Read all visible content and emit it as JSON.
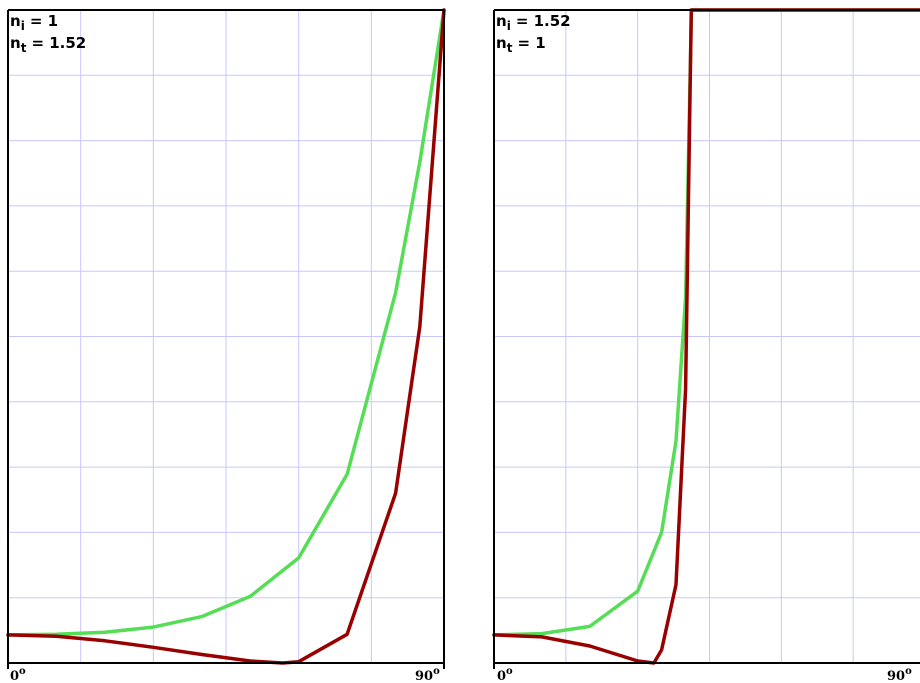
{
  "colors": {
    "grid": "#c8c8ff",
    "frame": "#000000",
    "perpendicular": "#990000",
    "parallel": "#55dd55"
  },
  "chart_data": [
    {
      "type": "line",
      "xlim": [
        0,
        90
      ],
      "ylim": [
        0,
        1
      ],
      "grid": true,
      "labels": {
        "ni_sym": "n",
        "ni_sub": "i",
        "ni_val": "= 1",
        "nt_sym": "n",
        "nt_sub": "t",
        "nt_val": "= 1.52",
        "x_min": "0",
        "x_min_sup": "o",
        "x_max": "90",
        "x_max_sup": "o"
      },
      "series": [
        {
          "color_key": "parallel",
          "x": [
            0,
            10,
            20,
            30,
            40,
            50,
            60,
            70,
            80,
            85,
            90
          ],
          "values": [
            0.043,
            0.044,
            0.047,
            0.055,
            0.071,
            0.102,
            0.161,
            0.289,
            0.567,
            0.767,
            1.0
          ]
        },
        {
          "color_key": "perpendicular",
          "x": [
            0,
            10,
            20,
            30,
            40,
            50,
            56.7,
            60,
            70,
            80,
            85,
            90
          ],
          "values": [
            0.043,
            0.041,
            0.034,
            0.024,
            0.013,
            0.003,
            0.0,
            0.002,
            0.044,
            0.26,
            0.515,
            1.0
          ]
        }
      ]
    },
    {
      "type": "line",
      "xlim": [
        0,
        90
      ],
      "ylim": [
        0,
        1
      ],
      "grid": true,
      "labels": {
        "ni_sym": "n",
        "ni_sub": "i",
        "ni_val": "= 1.52",
        "nt_sym": "n",
        "nt_sub": "t",
        "nt_val": "= 1",
        "x_min": "0",
        "x_min_sup": "o",
        "x_max": "90",
        "x_max_sup": "o"
      },
      "series": [
        {
          "color_key": "parallel",
          "x": [
            0,
            10,
            20,
            30,
            35,
            38,
            40,
            41.1,
            41.2,
            90
          ],
          "values": [
            0.043,
            0.045,
            0.056,
            0.11,
            0.2,
            0.34,
            0.56,
            0.95,
            1.0,
            1.0
          ]
        },
        {
          "color_key": "perpendicular",
          "x": [
            0,
            10,
            20,
            30,
            33.4,
            35,
            38,
            40,
            41.1,
            41.2,
            90
          ],
          "values": [
            0.043,
            0.04,
            0.026,
            0.003,
            0.0,
            0.02,
            0.12,
            0.42,
            0.95,
            1.0,
            1.0
          ]
        }
      ]
    }
  ]
}
